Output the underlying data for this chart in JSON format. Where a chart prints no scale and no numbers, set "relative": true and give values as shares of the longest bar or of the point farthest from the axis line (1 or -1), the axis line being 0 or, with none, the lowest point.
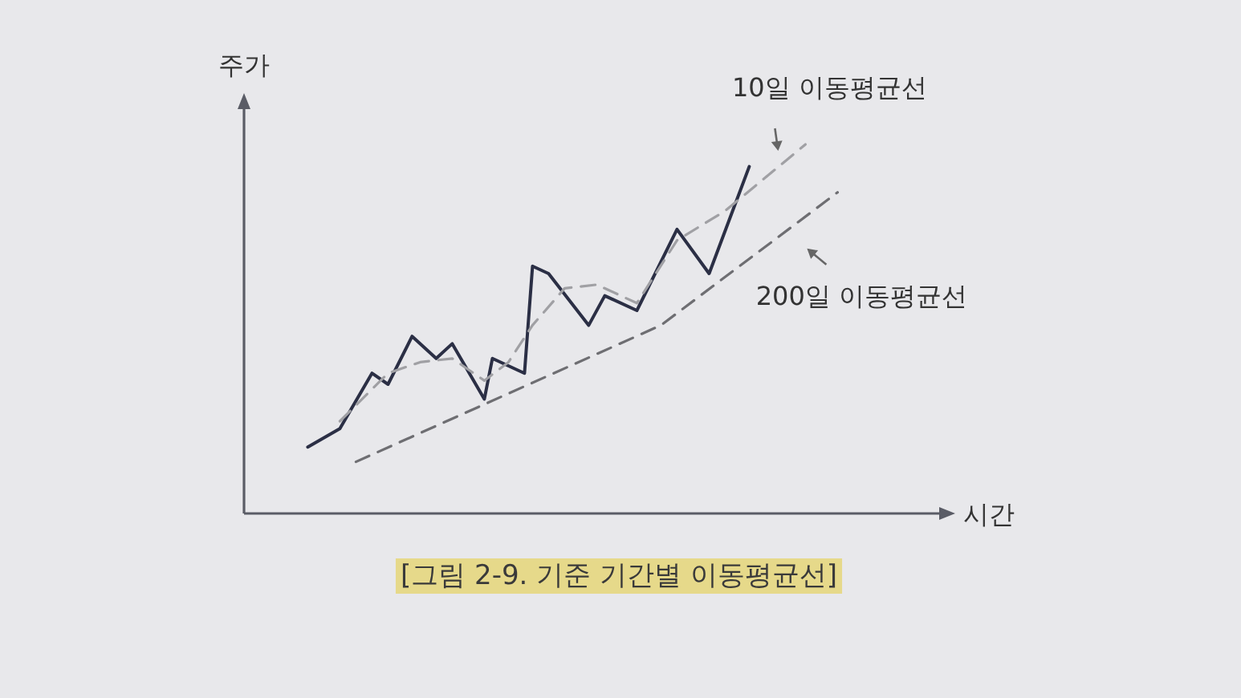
{
  "chart_data": {
    "type": "line",
    "relative": true,
    "xlabel": "시간",
    "ylabel": "주가",
    "annotations": [
      "[그림 2-9. 기준 기간별 이동평균선]"
    ],
    "categories": [
      null,
      null,
      null,
      null,
      null,
      null,
      null,
      null,
      null,
      null,
      null,
      null,
      null,
      null,
      null,
      null,
      null,
      null,
      null,
      null,
      null,
      null,
      null,
      null,
      null,
      null,
      null,
      null,
      null,
      null,
      null,
      null,
      null,
      null,
      null,
      null,
      null,
      null,
      null,
      null,
      null,
      null,
      null,
      null,
      null,
      null,
      null,
      null,
      null,
      null,
      null,
      null,
      null,
      null,
      null,
      null,
      null,
      null,
      null,
      null,
      null,
      null,
      null,
      null,
      null,
      null,
      null
    ],
    "series": [
      {
        "color": "#2b2f45",
        "line_style": "solid",
        "values": [
          0.18,
          null,
          null,
          null,
          0.23,
          null,
          null,
          null,
          0.38,
          null,
          0.35,
          null,
          null,
          0.48,
          null,
          null,
          0.42,
          null,
          0.46,
          null,
          null,
          null,
          0.31,
          0.42,
          null,
          null,
          null,
          0.38,
          0.67,
          null,
          0.65,
          null,
          null,
          null,
          null,
          0.51,
          null,
          0.59,
          null,
          null,
          null,
          0.55,
          null,
          null,
          null,
          null,
          0.77,
          null,
          null,
          null,
          0.65,
          null,
          null,
          null,
          null,
          0.94,
          null,
          null,
          null,
          null,
          null,
          null,
          null,
          null,
          null,
          null,
          null
        ]
      },
      {
        "name": "10일 이동평균선",
        "color": "#a0a0a4",
        "line_style": "dashed",
        "values": [
          null,
          null,
          null,
          null,
          0.25,
          null,
          null,
          null,
          null,
          null,
          0.38,
          null,
          null,
          null,
          0.41,
          null,
          null,
          null,
          0.42,
          null,
          null,
          null,
          0.36,
          null,
          null,
          0.41,
          null,
          null,
          0.51,
          null,
          null,
          null,
          0.61,
          null,
          null,
          null,
          0.62,
          null,
          null,
          null,
          null,
          0.57,
          null,
          null,
          null,
          null,
          0.74,
          null,
          null,
          null,
          null,
          null,
          0.82,
          null,
          null,
          null,
          null,
          null,
          null,
          null,
          null,
          null,
          1,
          null,
          null,
          null,
          null
        ]
      },
      {
        "name": "200일 이동평균선",
        "color": "#6e6e72",
        "line_style": "dashed",
        "values": [
          null,
          null,
          null,
          null,
          null,
          null,
          0.14,
          null,
          null,
          null,
          null,
          null,
          null,
          null,
          null,
          null,
          null,
          null,
          null,
          null,
          null,
          null,
          null,
          null,
          null,
          null,
          null,
          null,
          null,
          null,
          null,
          null,
          null,
          null,
          null,
          null,
          null,
          null,
          null,
          null,
          null,
          null,
          null,
          null,
          0.51,
          null,
          null,
          null,
          null,
          null,
          null,
          null,
          null,
          null,
          null,
          null,
          null,
          null,
          null,
          null,
          null,
          null,
          null,
          null,
          null,
          null,
          0.87
        ]
      }
    ]
  }
}
